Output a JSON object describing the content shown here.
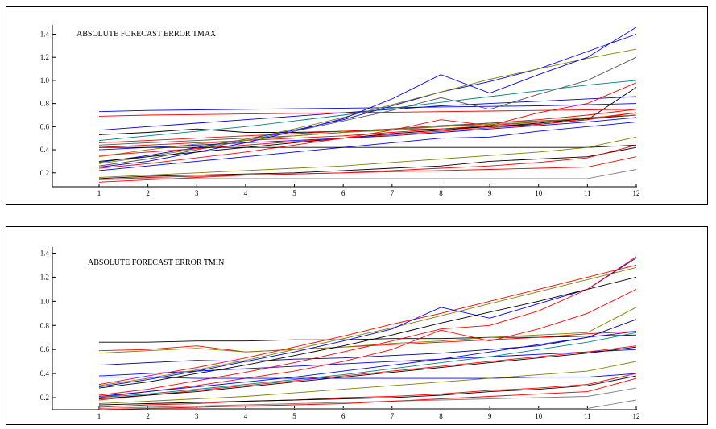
{
  "chart_data": [
    {
      "type": "line",
      "title": "ABSOLUTE FORECAST ERROR TMAX",
      "xlabel": "",
      "ylabel": "",
      "x": [
        1,
        2,
        3,
        4,
        5,
        6,
        7,
        8,
        9,
        10,
        11,
        12
      ],
      "xticks": [
        "1",
        "2",
        "3",
        "4",
        "5",
        "6",
        "7",
        "8",
        "9",
        "10",
        "11",
        "12"
      ],
      "yticks": [
        "0.2",
        "0.4",
        "0.6",
        "0.8",
        "1.0",
        "1.2",
        "1.4"
      ],
      "ylim": [
        0.08,
        1.48
      ],
      "grid": false,
      "series": [
        {
          "color": "#0000ff",
          "values": [
            0.73,
            0.74,
            0.745,
            0.75,
            0.755,
            0.76,
            0.765,
            0.77,
            0.775,
            0.78,
            0.79,
            0.8
          ]
        },
        {
          "color": "#ff0000",
          "values": [
            0.69,
            0.7,
            0.705,
            0.71,
            0.715,
            0.72,
            0.725,
            0.73,
            0.735,
            0.74,
            0.745,
            0.75
          ]
        },
        {
          "color": "#0000cc",
          "values": [
            0.57,
            0.6,
            0.63,
            0.66,
            0.69,
            0.72,
            0.75,
            0.78,
            0.8,
            0.82,
            0.84,
            0.86
          ]
        },
        {
          "color": "#000000",
          "values": [
            0.53,
            0.55,
            0.58,
            0.55,
            0.55,
            0.56,
            0.57,
            0.58,
            0.6,
            0.62,
            0.66,
            0.94
          ]
        },
        {
          "color": "#008080",
          "values": [
            0.48,
            0.52,
            0.56,
            0.6,
            0.65,
            0.7,
            0.76,
            0.81,
            0.86,
            0.91,
            0.96,
            1.0
          ]
        },
        {
          "color": "#ff0000",
          "values": [
            0.46,
            0.48,
            0.5,
            0.52,
            0.54,
            0.56,
            0.58,
            0.6,
            0.63,
            0.66,
            0.7,
            0.75
          ]
        },
        {
          "color": "#555555",
          "values": [
            0.44,
            0.46,
            0.48,
            0.5,
            0.52,
            0.55,
            0.58,
            0.61,
            0.63,
            0.65,
            0.67,
            0.7
          ]
        },
        {
          "color": "#ff0000",
          "values": [
            0.42,
            0.44,
            0.46,
            0.48,
            0.5,
            0.52,
            0.55,
            0.58,
            0.61,
            0.64,
            0.67,
            0.72
          ]
        },
        {
          "color": "#0000ff",
          "values": [
            0.4,
            0.42,
            0.44,
            0.46,
            0.48,
            0.5,
            0.52,
            0.55,
            0.58,
            0.61,
            0.64,
            0.68
          ]
        },
        {
          "color": "#0000ff",
          "values": [
            0.29,
            0.35,
            0.42,
            0.49,
            0.57,
            0.66,
            0.78,
            0.9,
            0.99,
            1.1,
            1.25,
            1.4
          ]
        },
        {
          "color": "#808000",
          "values": [
            0.28,
            0.34,
            0.41,
            0.49,
            0.58,
            0.68,
            0.79,
            0.9,
            1.01,
            1.1,
            1.19,
            1.27
          ]
        },
        {
          "color": "#0000ff",
          "values": [
            0.25,
            0.3,
            0.38,
            0.46,
            0.56,
            0.67,
            0.84,
            1.05,
            0.89,
            1.05,
            1.2,
            1.46
          ]
        },
        {
          "color": "#555555",
          "values": [
            0.26,
            0.32,
            0.4,
            0.48,
            0.56,
            0.65,
            0.74,
            0.85,
            0.75,
            0.88,
            1.0,
            1.2
          ]
        },
        {
          "color": "#000000",
          "values": [
            0.3,
            0.34,
            0.38,
            0.42,
            0.46,
            0.5,
            0.54,
            0.57,
            0.6,
            0.63,
            0.67,
            0.7
          ]
        },
        {
          "color": "#ff0000",
          "values": [
            0.24,
            0.28,
            0.33,
            0.38,
            0.44,
            0.5,
            0.57,
            0.66,
            0.61,
            0.72,
            0.8,
            0.98
          ]
        },
        {
          "color": "#0000ff",
          "values": [
            0.22,
            0.26,
            0.3,
            0.34,
            0.38,
            0.42,
            0.46,
            0.5,
            0.51,
            0.56,
            0.6,
            0.64
          ]
        },
        {
          "color": "#808000",
          "values": [
            0.34,
            0.4,
            0.45,
            0.48,
            0.52,
            0.55,
            0.57,
            0.6,
            0.62,
            0.64,
            0.68,
            0.7
          ]
        },
        {
          "color": "#ff0000",
          "values": [
            0.35,
            0.38,
            0.41,
            0.44,
            0.47,
            0.5,
            0.53,
            0.56,
            0.59,
            0.62,
            0.66,
            0.72
          ]
        },
        {
          "color": "#000000",
          "values": [
            0.42,
            0.42,
            0.42,
            0.42,
            0.42,
            0.42,
            0.42,
            0.42,
            0.42,
            0.42,
            0.42,
            0.44
          ]
        },
        {
          "color": "#808000",
          "values": [
            0.16,
            0.18,
            0.2,
            0.22,
            0.24,
            0.26,
            0.29,
            0.32,
            0.35,
            0.38,
            0.42,
            0.51
          ]
        },
        {
          "color": "#000000",
          "values": [
            0.15,
            0.17,
            0.18,
            0.19,
            0.2,
            0.22,
            0.24,
            0.26,
            0.3,
            0.32,
            0.34,
            0.42
          ]
        },
        {
          "color": "#ff0000",
          "values": [
            0.14,
            0.16,
            0.17,
            0.18,
            0.19,
            0.2,
            0.22,
            0.24,
            0.26,
            0.29,
            0.33,
            0.44
          ]
        },
        {
          "color": "#ff0000",
          "values": [
            0.12,
            0.14,
            0.16,
            0.18,
            0.19,
            0.2,
            0.21,
            0.22,
            0.23,
            0.24,
            0.25,
            0.34
          ]
        },
        {
          "color": "#808080",
          "values": [
            0.14,
            0.15,
            0.15,
            0.15,
            0.15,
            0.15,
            0.15,
            0.15,
            0.15,
            0.15,
            0.15,
            0.23
          ]
        }
      ]
    },
    {
      "type": "line",
      "title": "ABSOLUTE FORECAST ERROR TMIN",
      "xlabel": "",
      "ylabel": "",
      "x": [
        1,
        2,
        3,
        4,
        5,
        6,
        7,
        8,
        9,
        10,
        11,
        12
      ],
      "xticks": [
        "1",
        "2",
        "3",
        "4",
        "5",
        "6",
        "7",
        "8",
        "9",
        "10",
        "11",
        "12"
      ],
      "yticks": [
        "0.2",
        "0.4",
        "0.6",
        "0.8",
        "1.0",
        "1.2",
        "1.4"
      ],
      "ylim": [
        0.1,
        1.45
      ],
      "grid": false,
      "series": [
        {
          "color": "#000000",
          "values": [
            0.66,
            0.66,
            0.67,
            0.67,
            0.68,
            0.68,
            0.69,
            0.69,
            0.7,
            0.7,
            0.71,
            0.72
          ]
        },
        {
          "color": "#ff0000",
          "values": [
            0.59,
            0.6,
            0.63,
            0.58,
            0.6,
            0.62,
            0.64,
            0.66,
            0.68,
            0.7,
            0.73,
            0.75
          ]
        },
        {
          "color": "#808000",
          "values": [
            0.57,
            0.59,
            0.61,
            0.58,
            0.6,
            0.62,
            0.65,
            0.67,
            0.7,
            0.72,
            0.74,
            0.95
          ]
        },
        {
          "color": "#000080",
          "values": [
            0.47,
            0.49,
            0.51,
            0.5,
            0.52,
            0.53,
            0.55,
            0.57,
            0.6,
            0.63,
            0.7,
            0.85
          ]
        },
        {
          "color": "#0000ff",
          "values": [
            0.38,
            0.4,
            0.42,
            0.44,
            0.46,
            0.48,
            0.5,
            0.52,
            0.54,
            0.56,
            0.58,
            0.6
          ]
        },
        {
          "color": "#ff0000",
          "values": [
            0.31,
            0.38,
            0.45,
            0.53,
            0.62,
            0.71,
            0.81,
            0.9,
            1.0,
            1.1,
            1.2,
            1.3
          ]
        },
        {
          "color": "#808000",
          "values": [
            0.3,
            0.36,
            0.43,
            0.51,
            0.6,
            0.69,
            0.78,
            0.88,
            0.98,
            1.08,
            1.18,
            1.28
          ]
        },
        {
          "color": "#0000ff",
          "values": [
            0.29,
            0.35,
            0.42,
            0.5,
            0.58,
            0.67,
            0.77,
            0.95,
            0.86,
            0.98,
            1.1,
            1.36
          ]
        },
        {
          "color": "#000000",
          "values": [
            0.28,
            0.33,
            0.4,
            0.47,
            0.55,
            0.63,
            0.72,
            0.82,
            0.91,
            1.0,
            1.1,
            1.2
          ]
        },
        {
          "color": "#ff0000",
          "values": [
            0.22,
            0.27,
            0.34,
            0.41,
            0.49,
            0.58,
            0.67,
            0.77,
            0.8,
            0.92,
            1.1,
            1.37
          ]
        },
        {
          "color": "#ff0000",
          "values": [
            0.2,
            0.25,
            0.3,
            0.36,
            0.42,
            0.5,
            0.6,
            0.76,
            0.67,
            0.77,
            0.9,
            1.1
          ]
        },
        {
          "color": "#0000ff",
          "values": [
            0.21,
            0.25,
            0.29,
            0.33,
            0.37,
            0.42,
            0.47,
            0.52,
            0.58,
            0.64,
            0.7,
            0.75
          ]
        },
        {
          "color": "#008080",
          "values": [
            0.2,
            0.23,
            0.27,
            0.31,
            0.35,
            0.39,
            0.44,
            0.49,
            0.54,
            0.6,
            0.66,
            0.74
          ]
        },
        {
          "color": "#ff0000",
          "values": [
            0.18,
            0.22,
            0.26,
            0.3,
            0.34,
            0.38,
            0.42,
            0.46,
            0.5,
            0.54,
            0.58,
            0.63
          ]
        },
        {
          "color": "#000000",
          "values": [
            0.19,
            0.22,
            0.25,
            0.29,
            0.33,
            0.37,
            0.41,
            0.45,
            0.49,
            0.53,
            0.57,
            0.62
          ]
        },
        {
          "color": "#0000ff",
          "values": [
            0.37,
            0.37,
            0.36,
            0.36,
            0.36,
            0.36,
            0.36,
            0.36,
            0.36,
            0.37,
            0.37,
            0.4
          ]
        },
        {
          "color": "#808000",
          "values": [
            0.15,
            0.17,
            0.19,
            0.21,
            0.24,
            0.27,
            0.3,
            0.33,
            0.36,
            0.39,
            0.42,
            0.5
          ]
        },
        {
          "color": "#ff0000",
          "values": [
            0.12,
            0.14,
            0.15,
            0.17,
            0.18,
            0.2,
            0.21,
            0.23,
            0.26,
            0.28,
            0.31,
            0.4
          ]
        },
        {
          "color": "#000000",
          "values": [
            0.14,
            0.15,
            0.16,
            0.17,
            0.18,
            0.19,
            0.2,
            0.22,
            0.25,
            0.27,
            0.3,
            0.38
          ]
        },
        {
          "color": "#808080",
          "values": [
            0.11,
            0.12,
            0.13,
            0.14,
            0.15,
            0.16,
            0.17,
            0.18,
            0.19,
            0.2,
            0.21,
            0.28
          ]
        },
        {
          "color": "#808080",
          "values": [
            0.1,
            0.11,
            0.11,
            0.11,
            0.11,
            0.11,
            0.11,
            0.11,
            0.11,
            0.11,
            0.11,
            0.18
          ]
        },
        {
          "color": "#ff0000",
          "values": [
            0.1,
            0.11,
            0.12,
            0.13,
            0.14,
            0.15,
            0.17,
            0.19,
            0.21,
            0.23,
            0.25,
            0.36
          ]
        }
      ]
    }
  ]
}
